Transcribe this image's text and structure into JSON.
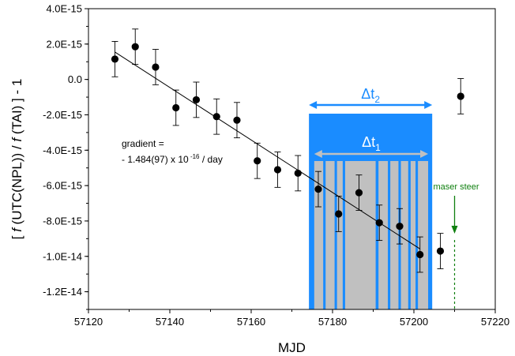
{
  "chart_data": {
    "type": "scatter",
    "xlabel": "MJD",
    "ylabel": {
      "prefix": "[ ",
      "f1": "f",
      "mid1": " (UTC(NPL)) / ",
      "f2": "f",
      "mid2": " (TAI) ] - 1"
    },
    "xlim": [
      57120,
      57220
    ],
    "ylim": [
      -1.3e-14,
      4e-15
    ],
    "x_ticks": [
      57120,
      57140,
      57160,
      57180,
      57200,
      57220
    ],
    "x_tick_labels": [
      "57120",
      "57140",
      "57160",
      "57180",
      "57200",
      "57220"
    ],
    "y_ticks": [
      4e-15,
      2e-15,
      0,
      -2e-15,
      -4e-15,
      -6e-15,
      -8e-15,
      -1e-14,
      -1.2e-14
    ],
    "y_tick_labels": [
      "4.0E-15",
      "2.0E-15",
      "0.0",
      "-2.0E-15",
      "-4.0E-15",
      "-6.0E-15",
      "-8.0E-15",
      "-1.0E-14",
      "-1.2E-14"
    ],
    "series": [
      {
        "x": [
          57126.5,
          57131.5,
          57136.5,
          57141.5,
          57146.5,
          57151.5,
          57156.5,
          57161.5,
          57166.5,
          57171.5,
          57176.5,
          57181.5,
          57186.5,
          57191.5,
          57196.5,
          57201.5,
          57206.5,
          57211.5
        ],
        "y": [
          1.15e-15,
          1.85e-15,
          7e-16,
          -1.6e-15,
          -1.15e-15,
          -2.1e-15,
          -2.3e-15,
          -4.6e-15,
          -5.1e-15,
          -5.3e-15,
          -6.2e-15,
          -7.6e-15,
          -6.4e-15,
          -8.1e-15,
          -8.3e-15,
          -9.9e-15,
          -9.7e-15,
          -9.5e-16
        ],
        "err": [
          1e-15,
          1e-15,
          1e-15,
          1e-15,
          1e-15,
          1e-15,
          1e-15,
          1e-15,
          1e-15,
          1e-15,
          1e-15,
          1e-15,
          1e-15,
          1e-15,
          1e-15,
          1e-15,
          1e-15,
          1e-15
        ]
      }
    ],
    "fit_line": {
      "x": [
        57126.5,
        57201.5
      ],
      "y": [
        1.55e-15,
        -9.58e-15
      ]
    },
    "gradient_label": {
      "line1": "gradient =",
      "prefix": "- 1.484(97) x 10",
      "exponent": " -16",
      "suffix": " / day"
    },
    "dt2": {
      "base": "Δt",
      "sub": "2",
      "x_range": [
        57174.2,
        57204.5
      ],
      "color": "#1a8cff"
    },
    "dt1": {
      "base": "Δt",
      "sub": "1",
      "x_range": [
        57175.5,
        57203.5
      ],
      "color": "#c0c0c0",
      "blocks": [
        [
          57175.5,
          57177.7
        ],
        [
          57178.3,
          57180.5
        ],
        [
          57181.1,
          57182.5
        ],
        [
          57183.1,
          57190.6
        ],
        [
          57191.3,
          57193.6
        ],
        [
          57194.2,
          57196.2
        ],
        [
          57196.8,
          57198.6
        ],
        [
          57199.2,
          57200.4
        ],
        [
          57201.0,
          57203.5
        ]
      ]
    },
    "maser_steer": {
      "label": "maser steer",
      "x": 57210,
      "color": "#108010"
    },
    "grid": false,
    "legend": "none"
  }
}
